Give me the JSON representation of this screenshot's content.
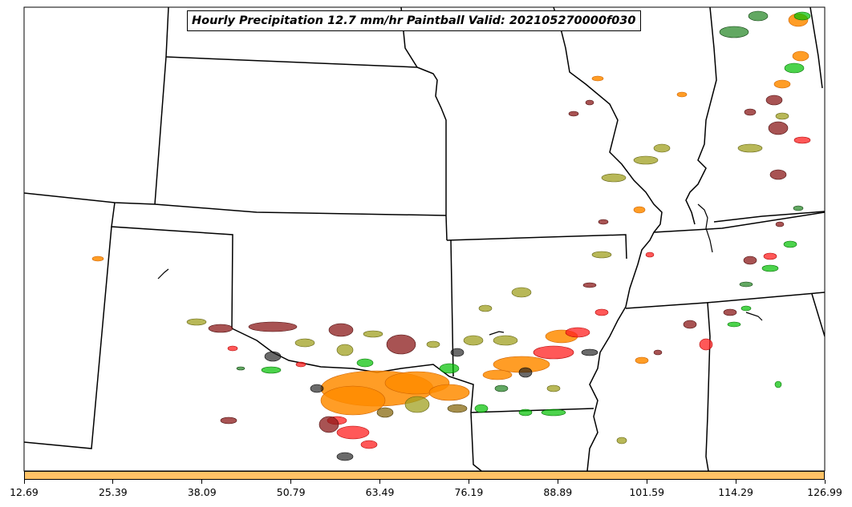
{
  "title": "Hourly Precipitation 12.7 mm/hr Paintball Valid: 202105270000f030",
  "colorbar": {
    "color": "#ffc266",
    "ticks": [
      "12.69",
      "25.39",
      "38.09",
      "50.79",
      "63.49",
      "76.19",
      "88.89",
      "101.59",
      "114.29",
      "126.99"
    ]
  },
  "paintball_colors": [
    "#8b1a1a",
    "#a0a020",
    "#00c000",
    "#ff2020",
    "#ff8c00",
    "#1a1a1a",
    "#2e8b2e",
    "#806000"
  ]
}
